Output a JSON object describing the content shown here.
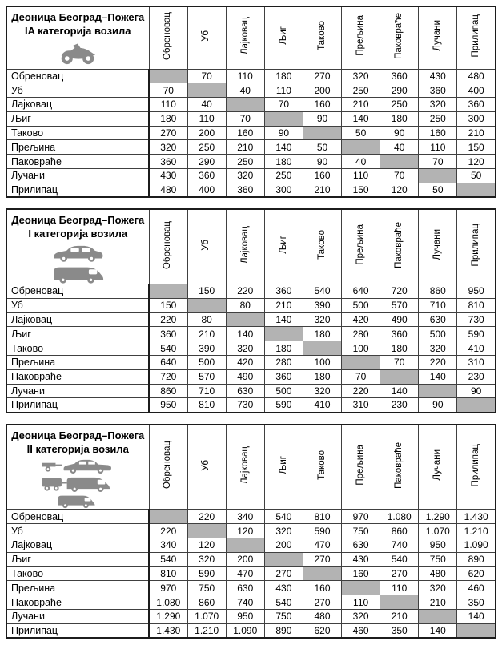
{
  "colors": {
    "diagonal_fill": "#b3b3b3",
    "table_border": "#1c1c1c",
    "icon_gray": "#8a8a8a"
  },
  "stations": [
    "Обреновац",
    "Уб",
    "Лајковац",
    "Љиг",
    "Таково",
    "Прељина",
    "Паковраће",
    "Лучани",
    "Прилипац"
  ],
  "tables": [
    {
      "title_line1": "Деоница Београд–Пожега",
      "title_line2": "IA категорија возила",
      "icons": [
        "motorcycle-icon"
      ],
      "rows": [
        {
          "label": "Обреновац",
          "values": [
            null,
            "70",
            "110",
            "180",
            "270",
            "320",
            "360",
            "430",
            "480"
          ]
        },
        {
          "label": "Уб",
          "values": [
            "70",
            null,
            "40",
            "110",
            "200",
            "250",
            "290",
            "360",
            "400"
          ]
        },
        {
          "label": "Лајковац",
          "values": [
            "110",
            "40",
            null,
            "70",
            "160",
            "210",
            "250",
            "320",
            "360"
          ]
        },
        {
          "label": "Љиг",
          "values": [
            "180",
            "110",
            "70",
            null,
            "90",
            "140",
            "180",
            "250",
            "300"
          ]
        },
        {
          "label": "Таково",
          "values": [
            "270",
            "200",
            "160",
            "90",
            null,
            "50",
            "90",
            "160",
            "210"
          ]
        },
        {
          "label": "Прељина",
          "values": [
            "320",
            "250",
            "210",
            "140",
            "50",
            null,
            "40",
            "110",
            "150"
          ]
        },
        {
          "label": "Паковраће",
          "values": [
            "360",
            "290",
            "250",
            "180",
            "90",
            "40",
            null,
            "70",
            "120"
          ]
        },
        {
          "label": "Лучани",
          "values": [
            "430",
            "360",
            "320",
            "250",
            "160",
            "110",
            "70",
            null,
            "50"
          ]
        },
        {
          "label": "Прилипац",
          "values": [
            "480",
            "400",
            "360",
            "300",
            "210",
            "150",
            "120",
            "50",
            null
          ]
        }
      ]
    },
    {
      "title_line1": "Деоница Београд–Пожега",
      "title_line2": "I категорија возила",
      "icons": [
        "car-icon",
        "van-icon"
      ],
      "rows": [
        {
          "label": "Обреновац",
          "values": [
            null,
            "150",
            "220",
            "360",
            "540",
            "640",
            "720",
            "860",
            "950"
          ]
        },
        {
          "label": "Уб",
          "values": [
            "150",
            null,
            "80",
            "210",
            "390",
            "500",
            "570",
            "710",
            "810"
          ]
        },
        {
          "label": "Лајковац",
          "values": [
            "220",
            "80",
            null,
            "140",
            "320",
            "420",
            "490",
            "630",
            "730"
          ]
        },
        {
          "label": "Љиг",
          "values": [
            "360",
            "210",
            "140",
            null,
            "180",
            "280",
            "360",
            "500",
            "590"
          ]
        },
        {
          "label": "Таково",
          "values": [
            "540",
            "390",
            "320",
            "180",
            null,
            "100",
            "180",
            "320",
            "410"
          ]
        },
        {
          "label": "Прељина",
          "values": [
            "640",
            "500",
            "420",
            "280",
            "100",
            null,
            "70",
            "220",
            "310"
          ]
        },
        {
          "label": "Паковраће",
          "values": [
            "720",
            "570",
            "490",
            "360",
            "180",
            "70",
            null,
            "140",
            "230"
          ]
        },
        {
          "label": "Лучани",
          "values": [
            "860",
            "710",
            "630",
            "500",
            "320",
            "220",
            "140",
            null,
            "90"
          ]
        },
        {
          "label": "Прилипац",
          "values": [
            "950",
            "810",
            "730",
            "590",
            "410",
            "310",
            "230",
            "90",
            null
          ]
        }
      ]
    },
    {
      "title_line1": "Деоница Београд–Пожега",
      "title_line2": "II категорија возила",
      "icons": [
        "car-trailer-icon",
        "van-trailer-icon",
        "truck-icon"
      ],
      "rows": [
        {
          "label": "Обреновац",
          "values": [
            null,
            "220",
            "340",
            "540",
            "810",
            "970",
            "1.080",
            "1.290",
            "1.430"
          ]
        },
        {
          "label": "Уб",
          "values": [
            "220",
            null,
            "120",
            "320",
            "590",
            "750",
            "860",
            "1.070",
            "1.210"
          ]
        },
        {
          "label": "Лајковац",
          "values": [
            "340",
            "120",
            null,
            "200",
            "470",
            "630",
            "740",
            "950",
            "1.090"
          ]
        },
        {
          "label": "Љиг",
          "values": [
            "540",
            "320",
            "200",
            null,
            "270",
            "430",
            "540",
            "750",
            "890"
          ]
        },
        {
          "label": "Таково",
          "values": [
            "810",
            "590",
            "470",
            "270",
            null,
            "160",
            "270",
            "480",
            "620"
          ]
        },
        {
          "label": "Прељина",
          "values": [
            "970",
            "750",
            "630",
            "430",
            "160",
            null,
            "110",
            "320",
            "460"
          ]
        },
        {
          "label": "Паковраће",
          "values": [
            "1.080",
            "860",
            "740",
            "540",
            "270",
            "110",
            null,
            "210",
            "350"
          ]
        },
        {
          "label": "Лучани",
          "values": [
            "1.290",
            "1.070",
            "950",
            "750",
            "480",
            "320",
            "210",
            null,
            "140"
          ]
        },
        {
          "label": "Прилипац",
          "values": [
            "1.430",
            "1.210",
            "1.090",
            "890",
            "620",
            "460",
            "350",
            "140",
            null
          ]
        }
      ]
    }
  ]
}
